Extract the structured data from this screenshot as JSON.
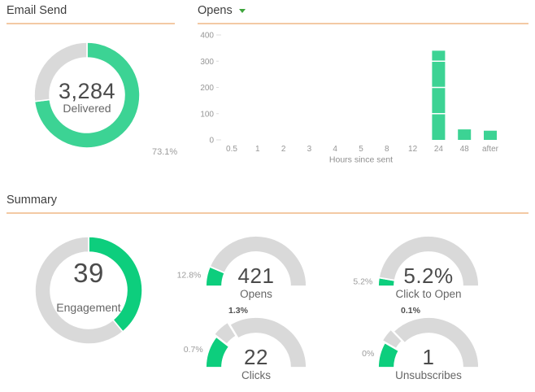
{
  "sections": {
    "email_send": {
      "title": "Email Send"
    },
    "opens": {
      "title": "Opens",
      "has_dropdown": true
    },
    "summary": {
      "title": "Summary"
    }
  },
  "colors": {
    "green_soft": "#3cd394",
    "green_vivid": "#0dce7d",
    "arc_gray": "#d9d9d9",
    "underline_peach": "#f3c9a4",
    "dropdown_green": "#3ea53c"
  },
  "chart_data": [
    {
      "id": "delivered",
      "type": "donut",
      "center_value": "3,284",
      "center_label": "Delivered",
      "fraction": 0.731,
      "annotation": "73.1%",
      "color": "#3cd394"
    },
    {
      "id": "opens_by_hour",
      "type": "bar",
      "title": "Opens",
      "xlabel": "Hours since sent",
      "categories": [
        "0.5",
        "1",
        "2",
        "3",
        "4",
        "5",
        "8",
        "12",
        "24",
        "48",
        "after"
      ],
      "values": [
        0,
        0,
        0,
        0,
        0,
        0,
        0,
        0,
        340,
        40,
        35
      ],
      "ylim": [
        0,
        400
      ],
      "yticks": [
        0,
        100,
        200,
        300,
        400
      ],
      "bar_color": "#3cd394",
      "grid": "white-over-bars",
      "legend": "none"
    },
    {
      "id": "engagement",
      "type": "donut",
      "center_value": "39",
      "center_label": "Engagement",
      "fraction": 0.39,
      "color": "#0dce7d"
    },
    {
      "id": "opens_gauge",
      "type": "gauge",
      "center_value": "421",
      "center_label": "Opens",
      "segments": [
        {
          "label": "12.8%",
          "arc_frac": 0.128,
          "color": "#0dce7d",
          "label_pos": "side"
        }
      ]
    },
    {
      "id": "click_to_open_gauge",
      "type": "gauge",
      "center_value": "5.2%",
      "center_label": "Click to Open",
      "segments": [
        {
          "label": "5.2%",
          "arc_frac": 0.055,
          "color": "#0dce7d",
          "label_pos": "side"
        }
      ]
    },
    {
      "id": "clicks_gauge",
      "type": "gauge",
      "center_value": "22",
      "center_label": "Clicks",
      "segments": [
        {
          "label": "0.7%",
          "arc_frac": 0.21,
          "color": "#0dce7d",
          "label_pos": "side"
        },
        {
          "label": "1.3%",
          "arc_frac": 0.115,
          "color": "#d9d9d9",
          "exploded": true,
          "label_pos": "top"
        }
      ]
    },
    {
      "id": "unsubscribes_gauge",
      "type": "gauge",
      "center_value": "1",
      "center_label": "Unsubscribes",
      "segments": [
        {
          "label": "0%",
          "arc_frac": 0.165,
          "color": "#0dce7d",
          "label_pos": "side"
        },
        {
          "label": "0.1%",
          "arc_frac": 0.09,
          "color": "#d9d9d9",
          "exploded": true,
          "label_pos": "top"
        }
      ]
    }
  ]
}
